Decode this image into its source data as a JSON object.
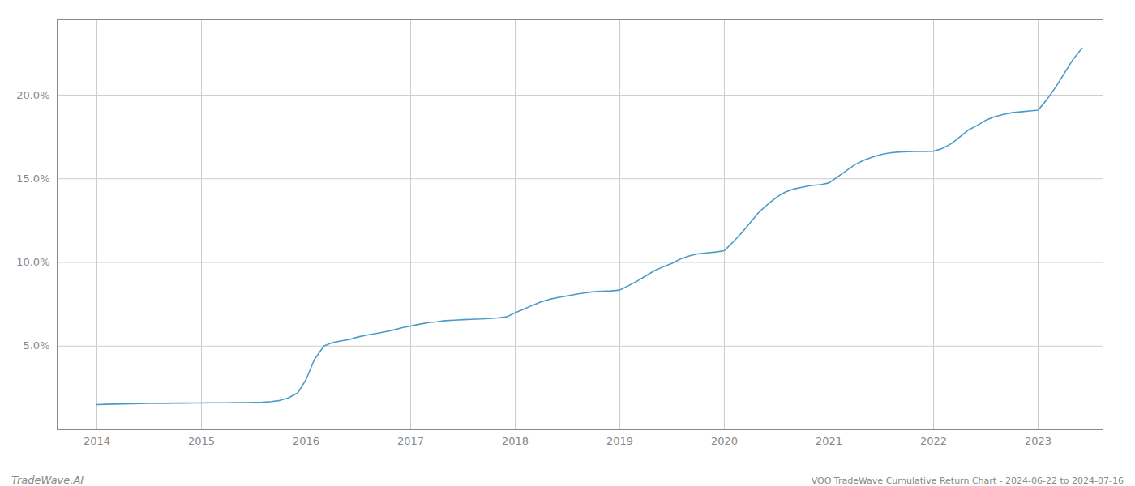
{
  "chart_data": {
    "type": "line",
    "title": "VOO TradeWave Cumulative Return Chart - 2024-06-22 to 2024-07-16",
    "annotations": [
      "TradeWave.AI"
    ],
    "color": "#4a9cc7",
    "grid": true,
    "x": [
      2014.0,
      2014.08,
      2014.17,
      2014.25,
      2014.33,
      2014.42,
      2014.5,
      2014.58,
      2014.67,
      2014.75,
      2014.83,
      2014.92,
      2015.0,
      2015.08,
      2015.17,
      2015.25,
      2015.33,
      2015.42,
      2015.5,
      2015.58,
      2015.67,
      2015.75,
      2015.83,
      2015.92,
      2016.0,
      2016.08,
      2016.17,
      2016.25,
      2016.33,
      2016.42,
      2016.5,
      2016.58,
      2016.67,
      2016.75,
      2016.83,
      2016.92,
      2017.0,
      2017.08,
      2017.17,
      2017.25,
      2017.33,
      2017.42,
      2017.5,
      2017.58,
      2017.67,
      2017.75,
      2017.83,
      2017.92,
      2018.0,
      2018.08,
      2018.17,
      2018.25,
      2018.33,
      2018.42,
      2018.5,
      2018.58,
      2018.67,
      2018.75,
      2018.83,
      2018.92,
      2019.0,
      2019.08,
      2019.17,
      2019.25,
      2019.33,
      2019.42,
      2019.5,
      2019.58,
      2019.67,
      2019.75,
      2019.83,
      2019.92,
      2020.0,
      2020.08,
      2020.17,
      2020.25,
      2020.33,
      2020.42,
      2020.5,
      2020.58,
      2020.67,
      2020.75,
      2020.83,
      2020.92,
      2021.0,
      2021.08,
      2021.17,
      2021.25,
      2021.33,
      2021.42,
      2021.5,
      2021.58,
      2021.67,
      2021.75,
      2021.83,
      2021.92,
      2022.0,
      2022.08,
      2022.17,
      2022.25,
      2022.33,
      2022.42,
      2022.5,
      2022.58,
      2022.67,
      2022.75,
      2022.83,
      2022.92,
      2023.0,
      2023.08,
      2023.17,
      2023.25,
      2023.33,
      2023.42
    ],
    "values": [
      1.5,
      1.52,
      1.53,
      1.54,
      1.55,
      1.56,
      1.57,
      1.58,
      1.58,
      1.59,
      1.59,
      1.6,
      1.6,
      1.61,
      1.61,
      1.61,
      1.62,
      1.62,
      1.63,
      1.64,
      1.68,
      1.75,
      1.9,
      2.2,
      3.0,
      4.2,
      5.0,
      5.2,
      5.3,
      5.4,
      5.55,
      5.65,
      5.75,
      5.85,
      5.95,
      6.1,
      6.2,
      6.3,
      6.4,
      6.45,
      6.52,
      6.55,
      6.58,
      6.6,
      6.62,
      6.65,
      6.68,
      6.75,
      7.0,
      7.2,
      7.45,
      7.65,
      7.8,
      7.92,
      8.0,
      8.1,
      8.18,
      8.25,
      8.28,
      8.3,
      8.35,
      8.6,
      8.9,
      9.2,
      9.5,
      9.75,
      9.95,
      10.2,
      10.4,
      10.52,
      10.57,
      10.62,
      10.7,
      11.2,
      11.8,
      12.4,
      13.0,
      13.5,
      13.9,
      14.2,
      14.4,
      14.5,
      14.6,
      14.65,
      14.75,
      15.1,
      15.5,
      15.85,
      16.1,
      16.3,
      16.45,
      16.55,
      16.6,
      16.62,
      16.63,
      16.64,
      16.65,
      16.8,
      17.1,
      17.5,
      17.9,
      18.2,
      18.5,
      18.7,
      18.85,
      18.95,
      19.0,
      19.05,
      19.1,
      19.7,
      20.5,
      21.3,
      22.1,
      22.8
    ],
    "xlim": [
      2013.62,
      2023.62
    ],
    "xticks": [
      2014,
      2015,
      2016,
      2017,
      2018,
      2019,
      2020,
      2021,
      2022,
      2023
    ],
    "ylim": [
      0.0,
      24.5
    ],
    "yticks": [
      {
        "value": 5.0,
        "label": "5.0%"
      },
      {
        "value": 10.0,
        "label": "10.0%"
      },
      {
        "value": 15.0,
        "label": "15.0%"
      },
      {
        "value": 20.0,
        "label": "20.0%"
      }
    ]
  }
}
